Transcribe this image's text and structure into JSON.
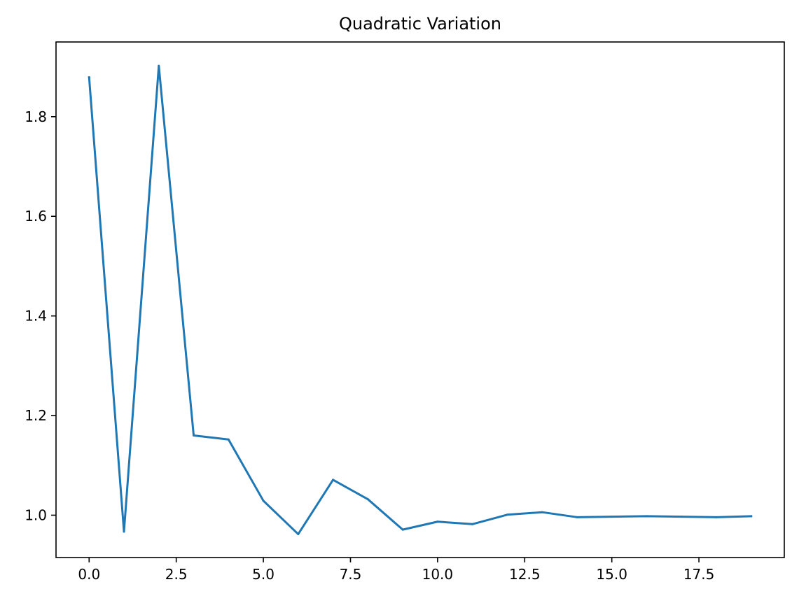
{
  "chart_data": {
    "type": "line",
    "title": "Quadratic Variation",
    "xlabel": "",
    "ylabel": "",
    "xlim": [
      -0.95,
      19.95
    ],
    "ylim": [
      0.915,
      1.95
    ],
    "x_ticks": [
      0,
      2.5,
      5,
      7.5,
      10,
      12.5,
      15,
      17.5
    ],
    "x_tick_labels": [
      "0.0",
      "2.5",
      "5.0",
      "7.5",
      "10.0",
      "12.5",
      "15.0",
      "17.5"
    ],
    "y_ticks": [
      1.0,
      1.2,
      1.4,
      1.6,
      1.8
    ],
    "y_tick_labels": [
      "1.0",
      "1.2",
      "1.4",
      "1.6",
      "1.8"
    ],
    "grid": false,
    "legend": "none",
    "series": [
      {
        "color": "#1f77b4",
        "x": [
          0,
          1,
          2,
          3,
          4,
          5,
          6,
          7,
          8,
          9,
          10,
          11,
          12,
          13,
          14,
          15,
          16,
          17,
          18,
          19
        ],
        "values": [
          1.879,
          0.967,
          1.902,
          1.16,
          1.152,
          1.029,
          0.962,
          1.071,
          1.032,
          0.971,
          0.987,
          0.982,
          1.001,
          1.006,
          0.996,
          0.997,
          0.998,
          0.997,
          0.996,
          0.998
        ]
      }
    ]
  }
}
